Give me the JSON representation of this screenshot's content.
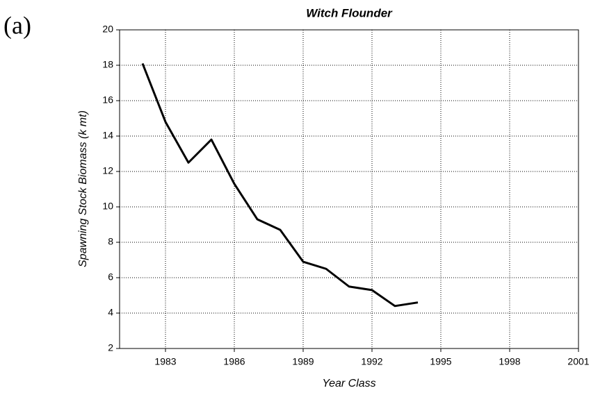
{
  "chart_data": {
    "type": "line",
    "panel_label": "(a)",
    "title": "Witch Flounder",
    "x_label": "Year Class",
    "y_label": "Spawning Stock Biomass (k mt)",
    "x": [
      1982,
      1983,
      1984,
      1985,
      1986,
      1987,
      1988,
      1989,
      1990,
      1991,
      1992,
      1993,
      1994
    ],
    "series": [
      {
        "name": "Witch Flounder",
        "color": "#000000",
        "values": [
          18.1,
          14.8,
          12.5,
          13.8,
          11.3,
          9.3,
          8.7,
          6.9,
          6.5,
          5.5,
          5.3,
          4.4,
          4.6
        ]
      }
    ],
    "xlim": [
      1981,
      2001
    ],
    "xticks": [
      1983,
      1986,
      1989,
      1992,
      1995,
      1998,
      2001
    ],
    "ylim": [
      2,
      20
    ],
    "yticks": [
      2,
      4,
      6,
      8,
      10,
      12,
      14,
      16,
      18,
      20
    ],
    "grid": true
  }
}
